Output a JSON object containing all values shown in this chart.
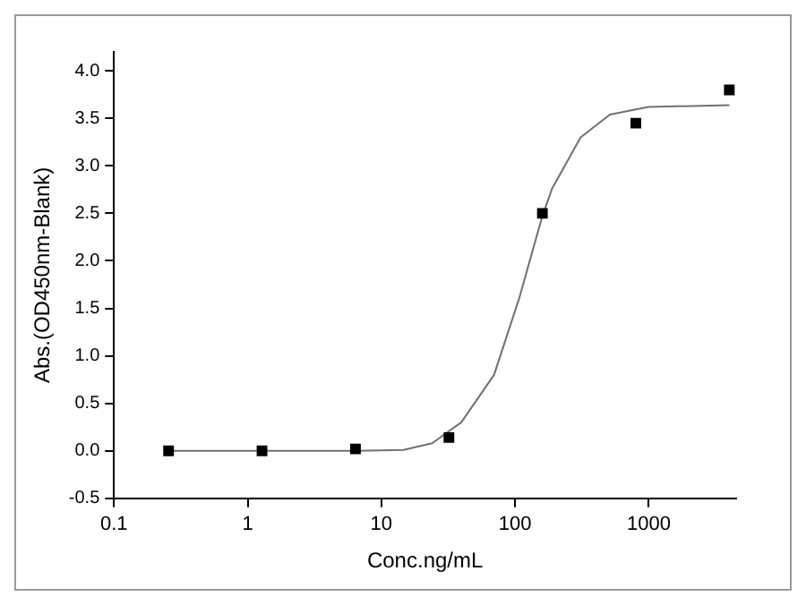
{
  "chart_data": {
    "type": "scatter",
    "xlabel": "Conc.ng/mL",
    "ylabel": "Abs.(OD450nm-Blank)",
    "log": "x",
    "grid": false,
    "marker": "square",
    "xlim": [
      0.1,
      4500
    ],
    "ylim": [
      -0.5,
      4.2
    ],
    "xticks": [
      0.1,
      1,
      10,
      100,
      1000
    ],
    "yticks": [
      -0.5,
      {
        "value": 0,
        "label": "0.0"
      },
      0.5,
      {
        "value": 1,
        "label": "1.0"
      },
      1.5,
      {
        "value": 2,
        "label": "2.0"
      },
      2.5,
      {
        "value": 3,
        "label": "3.0"
      },
      3.5,
      {
        "value": 4,
        "label": "4.0"
      }
    ],
    "series": [
      {
        "type": "scatter",
        "color": "#000000",
        "x": [
          0.256,
          1.28,
          6.4,
          32,
          160,
          800,
          4000
        ],
        "values": [
          0.0,
          0.0,
          0.02,
          0.14,
          2.5,
          3.45,
          3.8
        ]
      },
      {
        "type": "line",
        "color": "#707070",
        "marker": "none",
        "x": [
          0.256,
          6.37,
          14.6,
          24,
          39.6,
          69.6,
          107,
          159,
          189,
          309,
          512,
          993,
          4000
        ],
        "values": [
          0.0,
          0.0,
          0.01,
          0.08,
          0.3,
          0.8,
          1.6,
          2.46,
          2.76,
          3.3,
          3.54,
          3.62,
          3.64
        ]
      }
    ]
  }
}
